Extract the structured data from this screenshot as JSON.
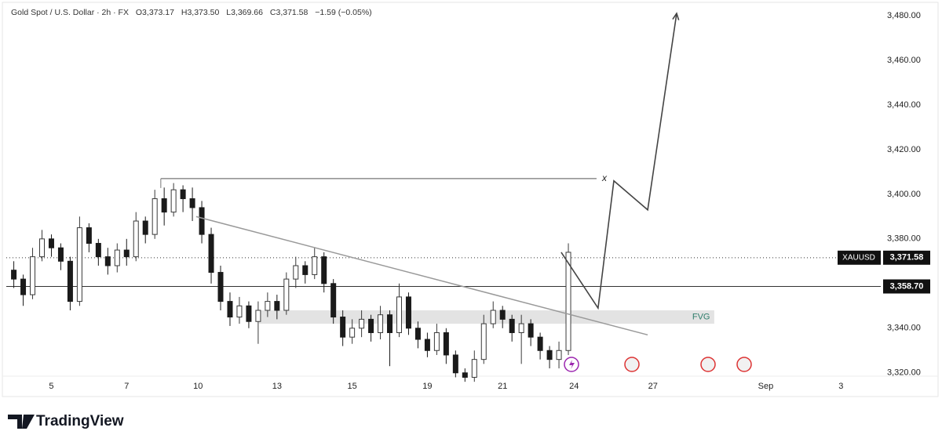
{
  "chart_data": {
    "type": "candlestick",
    "title": "Gold Spot / U.S. Dollar · 2h · FX",
    "ohlc_text": [
      "O3,373.17",
      "H3,373.50",
      "L3,369.66",
      "C3,371.58",
      "−1.59 (−0.05%)"
    ],
    "x": [
      -1,
      -0.75,
      -0.5,
      -0.25,
      0,
      0.25,
      0.5,
      0.75,
      1,
      1.25,
      1.5,
      1.75,
      2,
      2.25,
      2.5,
      2.75,
      3,
      3.25,
      3.5,
      3.75,
      4,
      4.25,
      4.5,
      4.75,
      5,
      5.25,
      5.5,
      5.75,
      6,
      6.25,
      6.5,
      6.75,
      7,
      7.25,
      7.5,
      7.75,
      8,
      8.25,
      8.5,
      8.75,
      9,
      9.25,
      9.5,
      9.75,
      10,
      10.25,
      10.5,
      10.75,
      11,
      11.25,
      11.5,
      11.75,
      12,
      12.25,
      12.5,
      12.75,
      13,
      13.25,
      13.5,
      13.75
    ],
    "open": [
      3366,
      3362,
      3355,
      3372,
      3380,
      3376,
      3370,
      3352,
      3385,
      3378,
      3372,
      3368,
      3375,
      3372,
      3388,
      3382,
      3398,
      3392,
      3402,
      3398,
      3394,
      3382,
      3365,
      3352,
      3345,
      3350,
      3343,
      3348,
      3352,
      3348,
      3362,
      3368,
      3364,
      3372,
      3360,
      3345,
      3336,
      3340,
      3344,
      3338,
      3346,
      3338,
      3354,
      3340,
      3335,
      3330,
      3338,
      3328,
      3320,
      3318,
      3326,
      3342,
      3348,
      3344,
      3338,
      3342,
      3336,
      3330,
      3326,
      3330
    ],
    "high": [
      3370,
      3364,
      3376,
      3384,
      3382,
      3378,
      3372,
      3390,
      3387,
      3380,
      3376,
      3378,
      3380,
      3392,
      3390,
      3402,
      3403,
      3405,
      3404,
      3403,
      3397,
      3385,
      3368,
      3356,
      3354,
      3352,
      3352,
      3356,
      3355,
      3365,
      3372,
      3370,
      3376,
      3374,
      3362,
      3348,
      3344,
      3348,
      3346,
      3350,
      3348,
      3360,
      3356,
      3343,
      3338,
      3342,
      3340,
      3330,
      3322,
      3330,
      3346,
      3352,
      3350,
      3346,
      3346,
      3344,
      3338,
      3332,
      3334,
      3378
    ],
    "low": [
      3358,
      3350,
      3353,
      3370,
      3372,
      3366,
      3348,
      3350,
      3374,
      3368,
      3364,
      3365,
      3368,
      3370,
      3378,
      3380,
      3386,
      3390,
      3392,
      3388,
      3378,
      3360,
      3348,
      3341,
      3342,
      3340,
      3333,
      3345,
      3344,
      3346,
      3358,
      3360,
      3362,
      3356,
      3342,
      3332,
      3333,
      3336,
      3334,
      3335,
      3323,
      3336,
      3337,
      3331,
      3327,
      3328,
      3324,
      3318,
      3316,
      3316,
      3324,
      3340,
      3340,
      3334,
      3324,
      3332,
      3326,
      3322,
      3322,
      3328
    ],
    "close": [
      3362,
      3355,
      3372,
      3380,
      3376,
      3370,
      3352,
      3385,
      3378,
      3372,
      3368,
      3375,
      3372,
      3388,
      3382,
      3398,
      3392,
      3402,
      3398,
      3394,
      3382,
      3365,
      3352,
      3345,
      3350,
      3343,
      3348,
      3352,
      3348,
      3362,
      3368,
      3364,
      3372,
      3360,
      3345,
      3336,
      3340,
      3344,
      3338,
      3346,
      3338,
      3354,
      3340,
      3335,
      3330,
      3338,
      3328,
      3320,
      3318,
      3326,
      3342,
      3348,
      3344,
      3338,
      3342,
      3336,
      3330,
      3326,
      3330,
      3374
    ],
    "up_color": "#3a3a3a",
    "down_color": "#1a1a1a",
    "xlim": [
      -1.2,
      21.6
    ],
    "xticks": [
      {
        "value": 0,
        "label": "5"
      },
      {
        "value": 2,
        "label": "7"
      },
      {
        "value": 3.9,
        "label": "10"
      },
      {
        "value": 6,
        "label": "13"
      },
      {
        "value": 8,
        "label": "15"
      },
      {
        "value": 10,
        "label": "19"
      },
      {
        "value": 12,
        "label": "21"
      },
      {
        "value": 13.9,
        "label": "24"
      },
      {
        "value": 16,
        "label": "27"
      },
      {
        "value": 19,
        "label": "Sep"
      },
      {
        "value": 21,
        "label": "3"
      }
    ],
    "ylim": [
      3315,
      3487
    ],
    "yticks": [
      {
        "value": 3320,
        "label": "3,320.00"
      },
      {
        "value": 3340,
        "label": "3,340.00"
      },
      {
        "value": 3360,
        "label": "3,360.00"
      },
      {
        "value": 3380,
        "label": "3,380.00"
      },
      {
        "value": 3400,
        "label": "3,400.00"
      },
      {
        "value": 3420,
        "label": "3,420.00"
      },
      {
        "value": 3440,
        "label": "3,440.00"
      },
      {
        "value": 3460,
        "label": "3,460.00"
      },
      {
        "value": 3480,
        "label": "3,480.00"
      }
    ],
    "price_lines": [
      {
        "value": 3371.58,
        "label": "3,371.58",
        "symbol": "XAUUSD",
        "style": "dotted"
      },
      {
        "value": 3358.7,
        "label": "3,358.70",
        "style": "solid"
      }
    ],
    "annotations": {
      "resistance": {
        "x": [
          2.91,
          14.5
        ],
        "y": 3407,
        "label": "x"
      },
      "trendline": {
        "x": [
          3.85,
          15.86
        ],
        "y": [
          3390,
          3337
        ]
      },
      "projection": {
        "x": [
          13.56,
          14.54,
          14.96,
          15.86,
          16.63
        ],
        "y": [
          3374,
          3349,
          3406,
          3393,
          3481
        ]
      },
      "fvg": {
        "x": [
          5.52,
          17.63
        ],
        "y": [
          3342,
          3348
        ],
        "label": "FVG"
      }
    },
    "brand": "TradingView"
  }
}
